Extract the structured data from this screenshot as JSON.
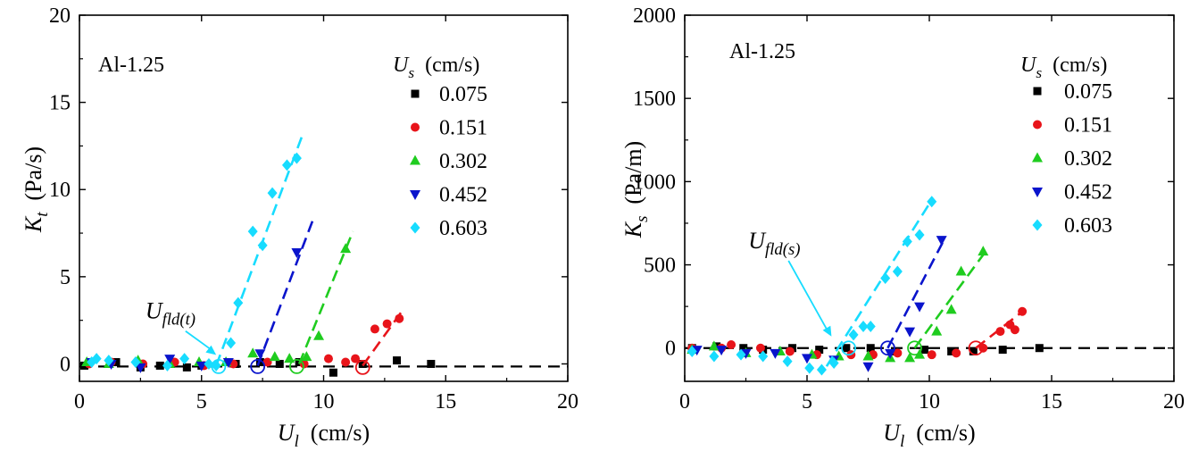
{
  "chart_data": [
    {
      "type": "scatter",
      "panel_label": "Al-1.25",
      "ylabel_sym": "K",
      "ylabel_sub": "t",
      "ylabel_unit": "(Pa/s)",
      "xlabel_sym": "U",
      "xlabel_sub": "l",
      "xlabel_unit": "(cm/s)",
      "xlim": [
        0,
        20
      ],
      "ylim": [
        -1,
        20
      ],
      "xticks": [
        "0",
        "5",
        "10",
        "15",
        "20"
      ],
      "xtick_vals": [
        0,
        5,
        10,
        15,
        20
      ],
      "yticks": [
        "0",
        "5",
        "10",
        "15",
        "20"
      ],
      "ytick_vals": [
        0,
        5,
        10,
        15,
        20
      ],
      "legend_title_sym": "U",
      "legend_title_sub": "s",
      "legend_title_unit": "(cm/s)",
      "annotation_sym": "U",
      "annotation_sub": "fld(t)",
      "annotation_arrow_to": [
        5.6,
        -0.1
      ],
      "annotation_text_at": [
        2.7,
        2.6
      ],
      "baseline": {
        "x": [
          0,
          20
        ],
        "y": [
          -0.15,
          -0.15
        ]
      },
      "series": [
        {
          "name": "0.075",
          "color": "#000000",
          "marker": "square",
          "x": [
            0.2,
            1.5,
            2.5,
            3.3,
            4.4,
            5.0,
            6.4,
            7.4,
            8.2,
            9.0,
            10.4,
            11.6,
            13.0,
            14.4
          ],
          "y": [
            -0.1,
            0.1,
            -0.2,
            -0.1,
            -0.2,
            -0.1,
            0.0,
            0.1,
            0.0,
            0.1,
            -0.5,
            0.0,
            0.2,
            0.0
          ],
          "fit": null,
          "circle": null
        },
        {
          "name": "0.151",
          "color": "#e8141a",
          "marker": "circle",
          "x": [
            0.4,
            1.3,
            2.6,
            3.9,
            5.1,
            6.3,
            7.7,
            9.2,
            10.2,
            10.9,
            11.3,
            12.1,
            12.6,
            13.1
          ],
          "y": [
            0.0,
            0.1,
            0.0,
            0.1,
            -0.1,
            0.0,
            0.1,
            0.0,
            0.3,
            0.1,
            0.3,
            2.0,
            2.3,
            2.6
          ],
          "fit": {
            "x": [
              11.6,
              13.3
            ],
            "y": [
              -0.1,
              3.2
            ]
          },
          "circle": [
            11.6,
            -0.2
          ]
        },
        {
          "name": "0.302",
          "color": "#1fcc1f",
          "marker": "triangle-up",
          "x": [
            0.3,
            1.2,
            2.4,
            3.7,
            4.9,
            6.0,
            7.1,
            8.0,
            8.6,
            9.3,
            9.8,
            10.9
          ],
          "y": [
            0.1,
            0.0,
            0.2,
            0.0,
            0.1,
            0.1,
            0.6,
            0.4,
            0.3,
            0.4,
            1.6,
            6.6
          ],
          "fit": {
            "x": [
              9.0,
              11.2
            ],
            "y": [
              0.0,
              7.6
            ]
          },
          "circle": [
            8.9,
            -0.15
          ]
        },
        {
          "name": "0.452",
          "color": "#0a14cc",
          "marker": "triangle-down",
          "x": [
            0.5,
            1.3,
            2.5,
            3.7,
            5.0,
            6.1,
            7.4,
            8.9
          ],
          "y": [
            0.1,
            0.0,
            -0.2,
            0.3,
            -0.1,
            0.1,
            0.6,
            6.4
          ],
          "fit": {
            "x": [
              7.3,
              9.6
            ],
            "y": [
              -0.1,
              8.4
            ]
          },
          "circle": [
            7.3,
            -0.15
          ]
        },
        {
          "name": "0.603",
          "color": "#17dcff",
          "marker": "diamond",
          "x": [
            0.5,
            0.7,
            1.2,
            2.3,
            3.6,
            4.3,
            5.3,
            5.6,
            6.2,
            6.5,
            7.1,
            7.5,
            7.9,
            8.5,
            8.9
          ],
          "y": [
            0.1,
            0.3,
            0.2,
            0.1,
            -0.1,
            0.3,
            0.0,
            -0.1,
            1.2,
            3.5,
            7.6,
            6.8,
            9.8,
            11.4,
            11.8
          ],
          "fit": {
            "x": [
              5.6,
              9.1
            ],
            "y": [
              -0.1,
              13.0
            ]
          },
          "circle": [
            5.7,
            -0.15
          ]
        }
      ]
    },
    {
      "type": "scatter",
      "panel_label": "Al-1.25",
      "ylabel_sym": "K",
      "ylabel_sub": "s",
      "ylabel_unit": "(Pa/m)",
      "xlabel_sym": "U",
      "xlabel_sub": "l",
      "xlabel_unit": "(cm/s)",
      "xlim": [
        0,
        20
      ],
      "ylim": [
        -200,
        2000
      ],
      "xticks": [
        "0",
        "5",
        "10",
        "15",
        "20"
      ],
      "xtick_vals": [
        0,
        5,
        10,
        15,
        20
      ],
      "yticks": [
        "0",
        "500",
        "1000",
        "1500",
        "2000"
      ],
      "ytick_vals": [
        0,
        500,
        1000,
        1500,
        2000
      ],
      "legend_title_sym": "U",
      "legend_title_sub": "s",
      "legend_title_unit": "(cm/s)",
      "annotation_sym": "U",
      "annotation_sub": "fld(s)",
      "annotation_arrow_to": [
        6.0,
        5
      ],
      "annotation_text_at": [
        2.6,
        600
      ],
      "baseline": {
        "x": [
          0,
          20
        ],
        "y": [
          0,
          0
        ]
      },
      "series": [
        {
          "name": "0.075",
          "color": "#000000",
          "marker": "square",
          "x": [
            0.3,
            1.3,
            2.4,
            3.2,
            4.4,
            5.5,
            6.6,
            7.6,
            8.6,
            9.8,
            10.9,
            11.8,
            13.0,
            14.5
          ],
          "y": [
            0,
            10,
            0,
            -10,
            0,
            -10,
            0,
            0,
            -20,
            -10,
            -20,
            -20,
            -10,
            0
          ],
          "fit": null,
          "circle": null
        },
        {
          "name": "0.151",
          "color": "#e8141a",
          "marker": "circle",
          "x": [
            0.3,
            1.5,
            1.9,
            3.1,
            4.3,
            5.4,
            6.8,
            7.7,
            8.7,
            10.1,
            11.1,
            12.2,
            12.9,
            13.3,
            13.5,
            13.8
          ],
          "y": [
            0,
            0,
            20,
            0,
            -20,
            -40,
            -40,
            -40,
            -30,
            -40,
            -30,
            0,
            100,
            140,
            110,
            220
          ],
          "fit": {
            "x": [
              11.9,
              13.9
            ],
            "y": [
              0,
              230
            ]
          },
          "circle": [
            11.9,
            0
          ]
        },
        {
          "name": "0.302",
          "color": "#1fcc1f",
          "marker": "triangle-up",
          "x": [
            0.3,
            1.2,
            2.5,
            3.9,
            5.2,
            6.3,
            7.5,
            8.4,
            9.2,
            9.6,
            10.3,
            10.9,
            11.3,
            12.2
          ],
          "y": [
            -10,
            10,
            -30,
            -20,
            -40,
            -50,
            -50,
            -60,
            -60,
            -40,
            100,
            230,
            460,
            580
          ],
          "fit": {
            "x": [
              9.4,
              12.4
            ],
            "y": [
              0,
              600
            ]
          },
          "circle": [
            9.4,
            0
          ]
        },
        {
          "name": "0.452",
          "color": "#0a14cc",
          "marker": "triangle-down",
          "x": [
            0.5,
            1.5,
            2.5,
            3.7,
            5.0,
            6.1,
            7.5,
            8.4,
            9.2,
            9.6,
            10.5
          ],
          "y": [
            -10,
            -10,
            -30,
            -30,
            -60,
            -70,
            -110,
            -30,
            100,
            250,
            650
          ],
          "fit": {
            "x": [
              8.3,
              10.6
            ],
            "y": [
              0,
              650
            ]
          },
          "circle": [
            8.3,
            0
          ]
        },
        {
          "name": "0.603",
          "color": "#17dcff",
          "marker": "diamond",
          "x": [
            0.3,
            1.2,
            2.3,
            3.2,
            4.2,
            5.1,
            5.6,
            6.1,
            6.9,
            7.3,
            7.6,
            8.2,
            8.7,
            9.1,
            9.6,
            10.1
          ],
          "y": [
            -20,
            -50,
            -40,
            -50,
            -80,
            -120,
            -130,
            -90,
            80,
            130,
            130,
            420,
            460,
            640,
            680,
            880
          ],
          "fit": {
            "x": [
              5.8,
              10.1
            ],
            "y": [
              -110,
              890
            ]
          },
          "circle": [
            6.7,
            0
          ]
        }
      ]
    }
  ]
}
